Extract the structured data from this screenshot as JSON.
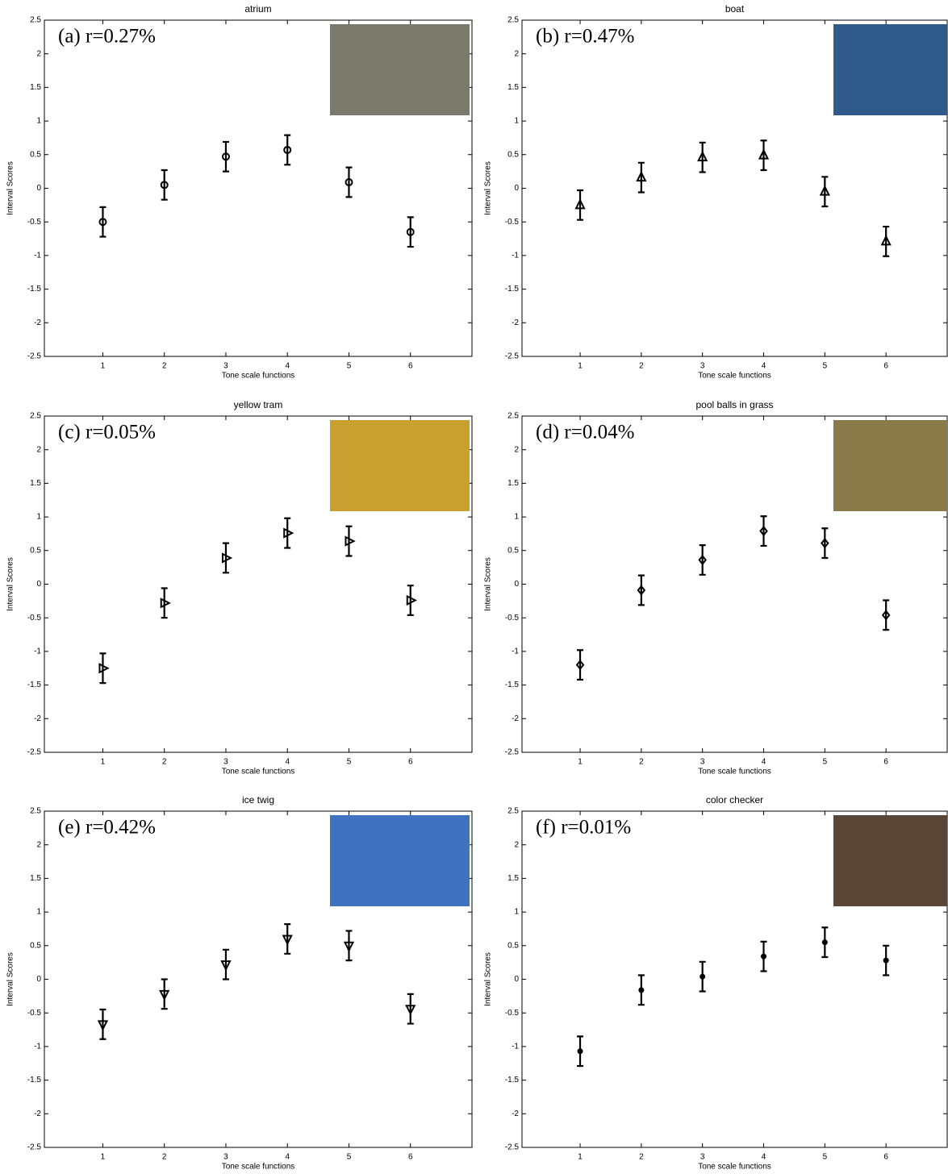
{
  "chart_data": [
    {
      "type": "errorbar",
      "title": "atrium",
      "annotation": "(a) r=0.27%",
      "marker": "circle",
      "x": [
        1,
        2,
        3,
        4,
        5,
        6
      ],
      "values": [
        -0.5,
        0.05,
        0.47,
        0.57,
        0.09,
        -0.65
      ],
      "errors": [
        0.22,
        0.22,
        0.22,
        0.22,
        0.22,
        0.22
      ],
      "xlim": [
        0.05,
        7
      ],
      "ylim": [
        -2.5,
        2.5
      ],
      "xticks": [
        1,
        2,
        3,
        4,
        5,
        6
      ],
      "yticks": [
        -2.5,
        -2,
        -1.5,
        -1,
        -0.5,
        0,
        0.5,
        1,
        1.5,
        2,
        2.5
      ],
      "xlabel": "Tone scale functions",
      "ylabel": "Interval Scores"
    },
    {
      "type": "errorbar",
      "title": "boat",
      "annotation": "(b) r=0.47%",
      "marker": "triangle-up",
      "x": [
        1,
        2,
        3,
        4,
        5,
        6
      ],
      "values": [
        -0.25,
        0.16,
        0.46,
        0.49,
        -0.05,
        -0.79
      ],
      "errors": [
        0.22,
        0.22,
        0.22,
        0.22,
        0.22,
        0.22
      ],
      "xlim": [
        0.05,
        7
      ],
      "ylim": [
        -2.5,
        2.5
      ],
      "xticks": [
        1,
        2,
        3,
        4,
        5,
        6
      ],
      "yticks": [
        -2.5,
        -2,
        -1.5,
        -1,
        -0.5,
        0,
        0.5,
        1,
        1.5,
        2,
        2.5
      ],
      "xlabel": "Tone scale functions",
      "ylabel": "Interval Scores"
    },
    {
      "type": "errorbar",
      "title": "yellow tram",
      "annotation": "(c) r=0.05%",
      "marker": "triangle-right",
      "x": [
        1,
        2,
        3,
        4,
        5,
        6
      ],
      "values": [
        -1.25,
        -0.28,
        0.39,
        0.76,
        0.64,
        -0.24
      ],
      "errors": [
        0.22,
        0.22,
        0.22,
        0.22,
        0.22,
        0.22
      ],
      "xlim": [
        0.05,
        7
      ],
      "ylim": [
        -2.5,
        2.5
      ],
      "xticks": [
        1,
        2,
        3,
        4,
        5,
        6
      ],
      "yticks": [
        -2.5,
        -2,
        -1.5,
        -1,
        -0.5,
        0,
        0.5,
        1,
        1.5,
        2,
        2.5
      ],
      "xlabel": "Tone scale functions",
      "ylabel": "Interval Scores"
    },
    {
      "type": "errorbar",
      "title": "pool balls in grass",
      "annotation": "(d) r=0.04%",
      "marker": "diamond",
      "x": [
        1,
        2,
        3,
        4,
        5,
        6
      ],
      "values": [
        -1.2,
        -0.09,
        0.36,
        0.79,
        0.61,
        -0.46
      ],
      "errors": [
        0.22,
        0.22,
        0.22,
        0.22,
        0.22,
        0.22
      ],
      "xlim": [
        0.05,
        7
      ],
      "ylim": [
        -2.5,
        2.5
      ],
      "xticks": [
        1,
        2,
        3,
        4,
        5,
        6
      ],
      "yticks": [
        -2.5,
        -2,
        -1.5,
        -1,
        -0.5,
        0,
        0.5,
        1,
        1.5,
        2,
        2.5
      ],
      "xlabel": "Tone scale functions",
      "ylabel": "Interval Scores"
    },
    {
      "type": "errorbar",
      "title": "ice twig",
      "annotation": "(e) r=0.42%",
      "marker": "triangle-down",
      "x": [
        1,
        2,
        3,
        4,
        5,
        6
      ],
      "values": [
        -0.67,
        -0.22,
        0.22,
        0.6,
        0.5,
        -0.44
      ],
      "errors": [
        0.22,
        0.22,
        0.22,
        0.22,
        0.22,
        0.22
      ],
      "xlim": [
        0.05,
        7
      ],
      "ylim": [
        -2.5,
        2.5
      ],
      "xticks": [
        1,
        2,
        3,
        4,
        5,
        6
      ],
      "yticks": [
        -2.5,
        -2,
        -1.5,
        -1,
        -0.5,
        0,
        0.5,
        1,
        1.5,
        2,
        2.5
      ],
      "xlabel": "Tone scale functions",
      "ylabel": "Interval Scores"
    },
    {
      "type": "errorbar",
      "title": "color checker",
      "annotation": "(f) r=0.01%",
      "marker": "dot",
      "x": [
        1,
        2,
        3,
        4,
        5,
        6
      ],
      "values": [
        -1.07,
        -0.16,
        0.04,
        0.34,
        0.55,
        0.28
      ],
      "errors": [
        0.22,
        0.22,
        0.22,
        0.22,
        0.22,
        0.22
      ],
      "xlim": [
        0.05,
        7
      ],
      "ylim": [
        -2.5,
        2.5
      ],
      "xticks": [
        1,
        2,
        3,
        4,
        5,
        6
      ],
      "yticks": [
        -2.5,
        -2,
        -1.5,
        -1,
        -0.5,
        0,
        0.5,
        1,
        1.5,
        2,
        2.5
      ],
      "xlabel": "Tone scale functions",
      "ylabel": "Interval Scores"
    }
  ]
}
